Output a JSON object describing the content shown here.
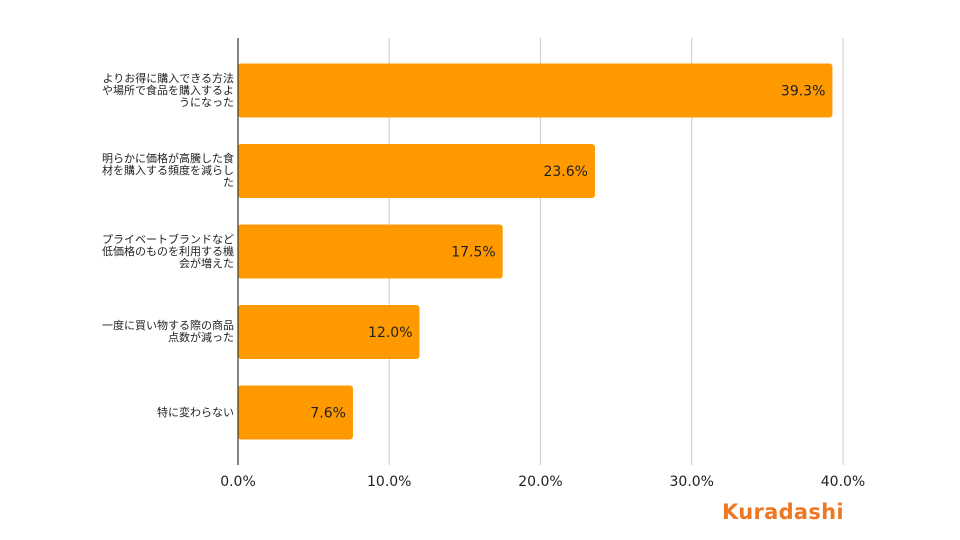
{
  "chart_data": {
    "type": "bar",
    "orientation": "horizontal",
    "categories": [
      "よりお得に購入できる方法や場所で食品を購入するようになった",
      "明らかに価格が高騰した食材を購入する頻度を減らした",
      "プライベートブランドなど低価格のものを利用する機会が増えた",
      "一度に買い物する際の商品点数が減った",
      "特に変わらない"
    ],
    "category_lines": [
      [
        "よりお得に購入できる方法",
        "や場所で食品を購入するよ",
        "うになった"
      ],
      [
        "明らかに価格が高騰した食",
        "材を購入する頻度を減らし",
        "た"
      ],
      [
        "プライベートブランドなど",
        "低価格のものを利用する機",
        "会が増えた"
      ],
      [
        "一度に買い物する際の商品",
        "点数が減った"
      ],
      [
        "特に変わらない"
      ]
    ],
    "values": [
      39.3,
      23.6,
      17.5,
      12.0,
      7.6
    ],
    "value_labels": [
      "39.3%",
      "23.6%",
      "17.5%",
      "12.0%",
      "7.6%"
    ],
    "xlim": [
      0,
      40
    ],
    "x_ticks": [
      0,
      10,
      20,
      30,
      40
    ],
    "x_tick_labels": [
      "0.0%",
      "10.0%",
      "20.0%",
      "30.0%",
      "40.0%"
    ],
    "grid": true,
    "colors": {
      "bar": "#FF9900",
      "grid": "#cccccc",
      "axis": "#333333",
      "text": "#222222"
    }
  },
  "logo": {
    "text": "Kuradashi",
    "color": "#EE7722"
  }
}
